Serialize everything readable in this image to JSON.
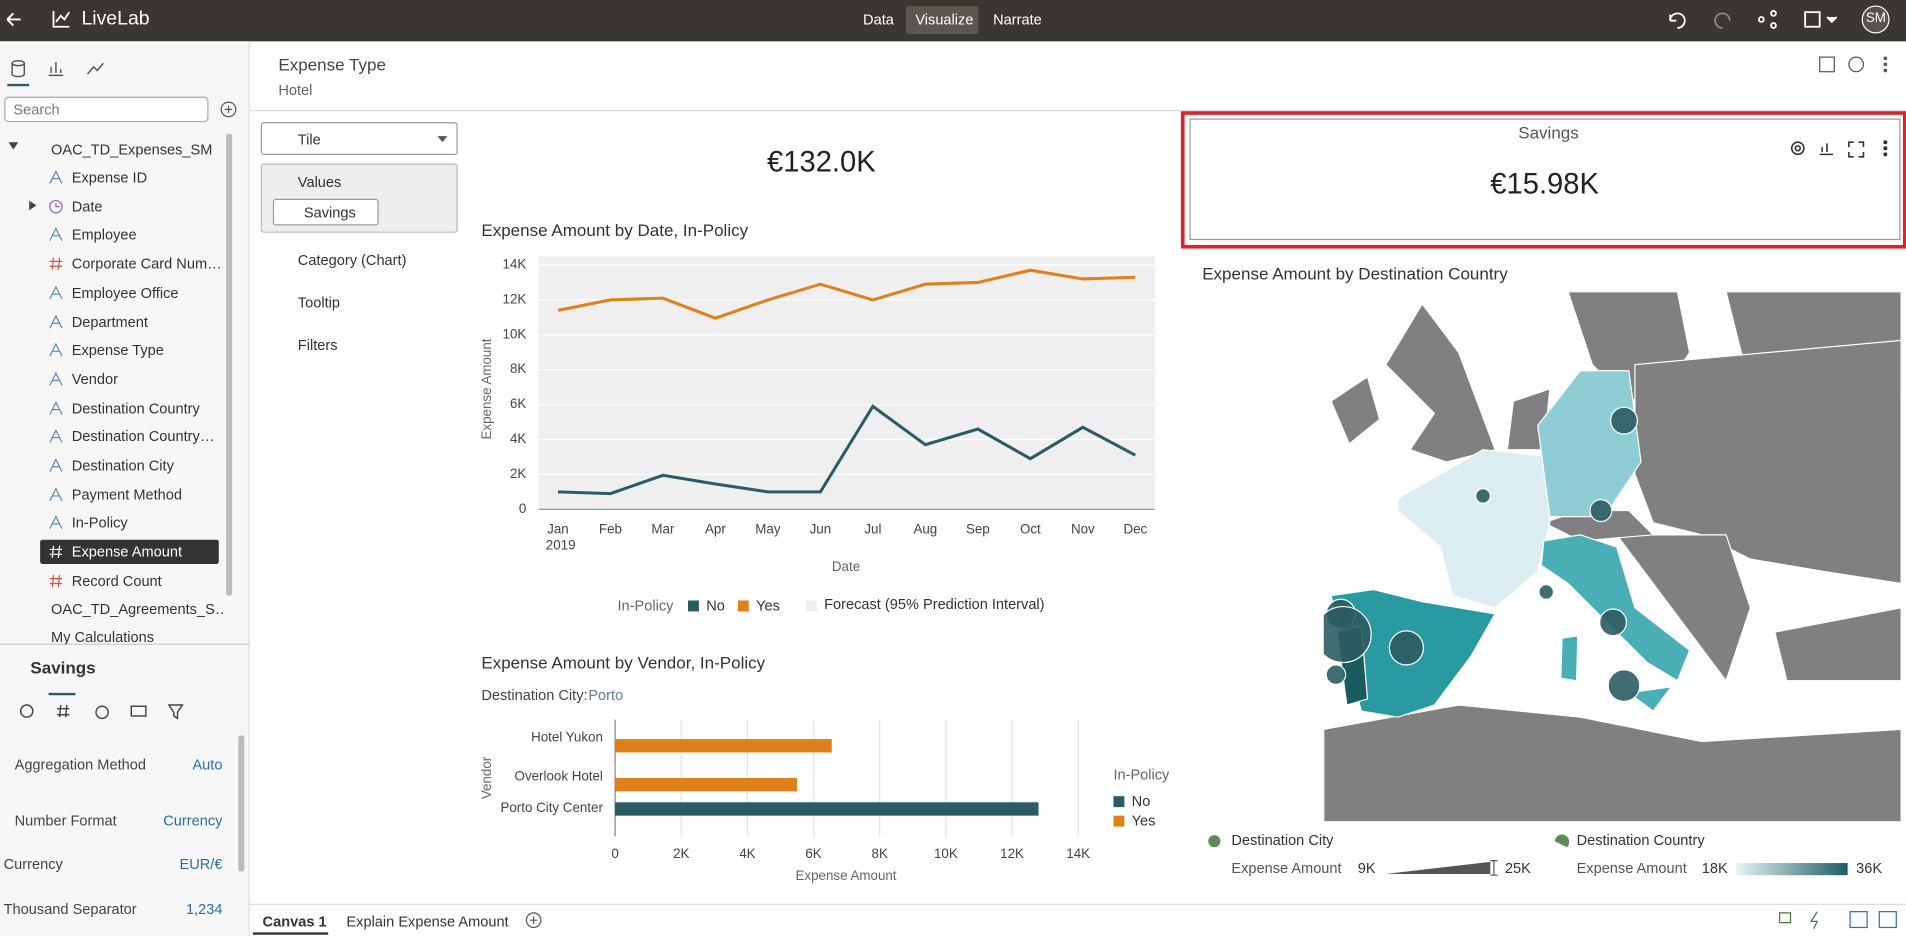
{
  "app": {
    "title": "LiveLab",
    "tabs": [
      "Data",
      "Visualize",
      "Narrate"
    ],
    "active_tab": 1,
    "avatar": "SM"
  },
  "filter": {
    "label": "Expense Type",
    "value": "Hotel"
  },
  "data_panel": {
    "search": "Search",
    "dataset": "OAC_TD_Expenses_SM",
    "fields": [
      {
        "name": "Expense ID",
        "kind": "attribute"
      },
      {
        "name": "Date",
        "kind": "date"
      },
      {
        "name": "Employee",
        "kind": "attribute"
      },
      {
        "name": "Corporate Card Num…",
        "kind": "measure"
      },
      {
        "name": "Employee Office",
        "kind": "attribute"
      },
      {
        "name": "Department",
        "kind": "attribute"
      },
      {
        "name": "Expense Type",
        "kind": "attribute"
      },
      {
        "name": "Vendor",
        "kind": "attribute"
      },
      {
        "name": "Destination Country",
        "kind": "attribute"
      },
      {
        "name": "Destination Country…",
        "kind": "attribute"
      },
      {
        "name": "Destination City",
        "kind": "attribute"
      },
      {
        "name": "Payment Method",
        "kind": "attribute"
      },
      {
        "name": "In-Policy",
        "kind": "attribute"
      },
      {
        "name": "Expense Amount",
        "kind": "measure",
        "selected": true
      },
      {
        "name": "Record Count",
        "kind": "measure"
      }
    ],
    "more": [
      "OAC_TD_Agreements_S…",
      "My Calculations"
    ]
  },
  "properties": {
    "title": "Savings",
    "rows": [
      [
        "Aggregation Method",
        "Auto"
      ],
      [
        "Number Format",
        "Currency"
      ],
      [
        "Currency",
        "EUR/€"
      ],
      [
        "Thousand Separator",
        "1,234"
      ]
    ]
  },
  "grammar": {
    "viz_type": "Tile",
    "values_label": "Values",
    "values_item": "Savings",
    "others": [
      "Category (Chart)",
      "Tooltip",
      "Filters"
    ]
  },
  "bottom_tabs": [
    "Canvas 1",
    "Explain Expense Amount"
  ],
  "chart_data": [
    {
      "type": "tile",
      "value": "€132.0K"
    },
    {
      "type": "line",
      "title": "Expense Amount by Date, In-Policy",
      "x_label": "Date",
      "y_label": "Expense Amount",
      "year_label": "2019",
      "categories": [
        "Jan",
        "Feb",
        "Mar",
        "Apr",
        "May",
        "Jun",
        "Jul",
        "Aug",
        "Sep",
        "Oct",
        "Nov",
        "Dec"
      ],
      "ylim": [
        0,
        14000
      ],
      "yticks": [
        0,
        {
          "value": 2000,
          "label": "2K"
        },
        {
          "value": 4000,
          "label": "4K"
        },
        {
          "value": 6000,
          "label": "6K"
        },
        {
          "value": 8000,
          "label": "8K"
        },
        {
          "value": 10000,
          "label": "10K"
        },
        {
          "value": 12000,
          "label": "12K"
        },
        {
          "value": 14000,
          "label": "14K"
        }
      ],
      "grid": true,
      "legend_title": "In-Policy",
      "forecast_label": "Forecast (95% Prediction Interval)",
      "series": [
        {
          "name": "No",
          "color": "#2b5c63",
          "values": [
            1000,
            900,
            1950,
            1450,
            1000,
            1000,
            5900,
            3700,
            4600,
            2900,
            4700,
            3100
          ]
        },
        {
          "name": "Yes",
          "color": "#e0801a",
          "values": [
            11400,
            12000,
            12100,
            10950,
            12000,
            12900,
            12000,
            12900,
            13000,
            13700,
            13200,
            13300
          ]
        }
      ]
    },
    {
      "type": "hbar",
      "title": "Expense Amount by Vendor, In-Policy",
      "filter_label": "Destination City:",
      "filter_value": "Porto",
      "x_label": "Expense Amount",
      "y_label": "Vendor",
      "categories": [
        "Hotel Yukon",
        "Overlook Hotel",
        "Porto City Center"
      ],
      "xlim": [
        0,
        14000
      ],
      "xticks": [
        0,
        {
          "value": 2000,
          "label": "2K"
        },
        {
          "value": 4000,
          "label": "4K"
        },
        {
          "value": 6000,
          "label": "6K"
        },
        {
          "value": 8000,
          "label": "8K"
        },
        {
          "value": 10000,
          "label": "10K"
        },
        {
          "value": 12000,
          "label": "12K"
        },
        {
          "value": 14000,
          "label": "14K"
        }
      ],
      "grid": true,
      "legend_title": "In-Policy",
      "series": [
        {
          "name": "No",
          "color": "#2b5c63",
          "values": [
            null,
            null,
            12800
          ]
        },
        {
          "name": "Yes",
          "color": "#e0801a",
          "values": [
            6550,
            5500,
            null
          ]
        }
      ]
    },
    {
      "type": "tile",
      "title": "Savings",
      "value": "€15.98K"
    },
    {
      "type": "map",
      "title": "Expense Amount by Destination Country",
      "size_legend": {
        "title": "Destination City",
        "measure": "Expense Amount",
        "min": {
          "value": 9000,
          "label": "9K"
        },
        "max": {
          "value": 25000,
          "label": "25K"
        }
      },
      "color_legend": {
        "title": "Destination Country",
        "measure": "Expense Amount",
        "min": {
          "value": 18000,
          "label": "18K"
        },
        "max": {
          "value": 36000,
          "label": "36K"
        }
      }
    }
  ]
}
